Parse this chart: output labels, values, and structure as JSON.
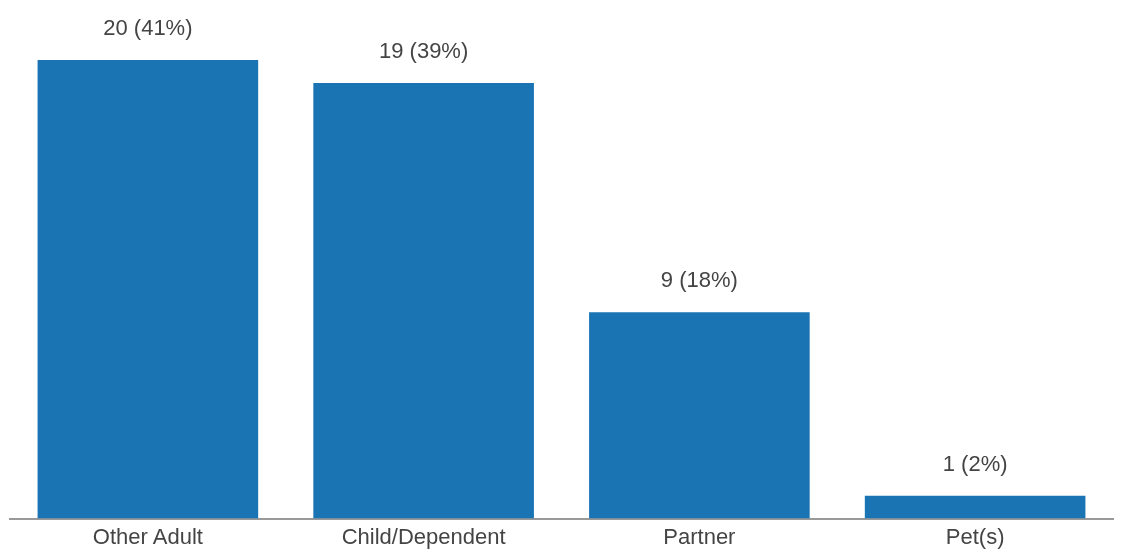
{
  "chart_data": {
    "type": "bar",
    "categories": [
      "Other Adult",
      "Child/Dependent",
      "Partner",
      "Pet(s)"
    ],
    "values": [
      20,
      19,
      9,
      1
    ],
    "value_labels": [
      "20 (41%)",
      "19 (39%)",
      "9 (18%)",
      "1 (2%)"
    ],
    "color": "#1a74b4",
    "grid": false,
    "legend": false
  }
}
